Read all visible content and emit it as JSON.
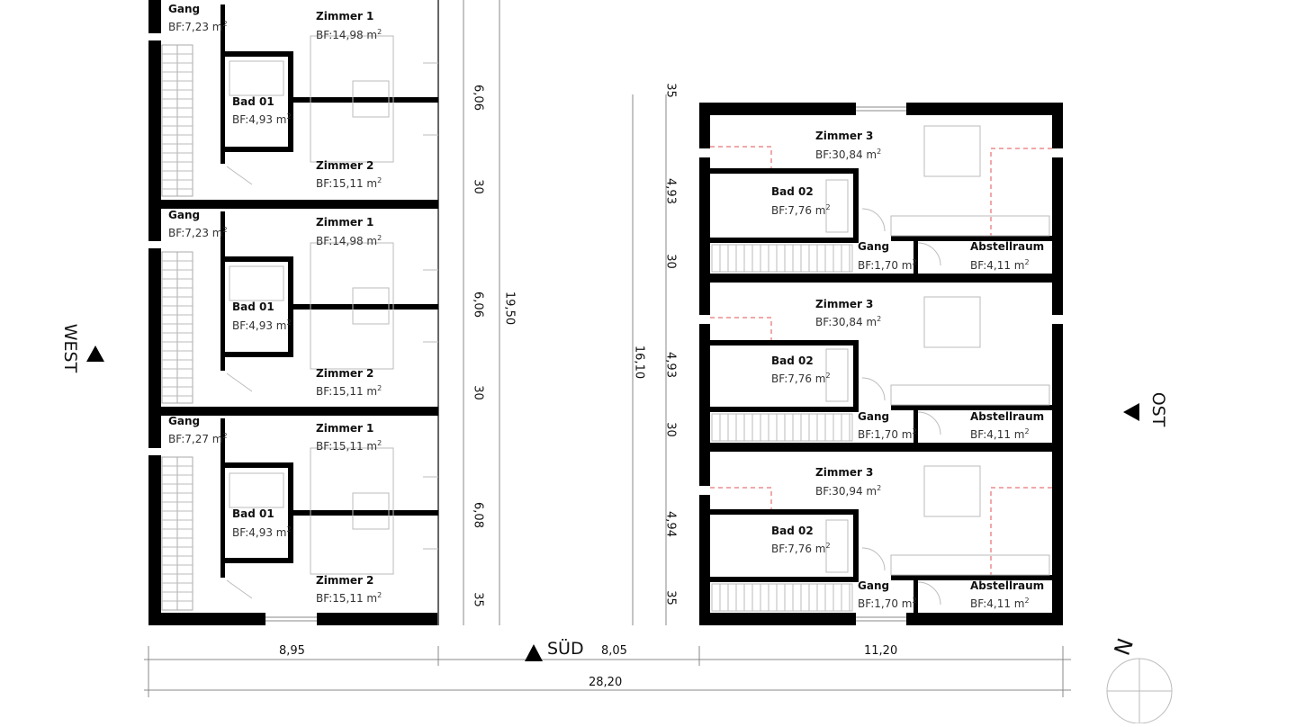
{
  "west_units": [
    {
      "gang_label": "Gang",
      "gang_area": "BF:7,23 m",
      "z1_label": "Zimmer 1",
      "z1_area": "BF:14,98 m",
      "bad_label": "Bad 01",
      "bad_area": "BF:4,93 m",
      "z2_label": "Zimmer 2",
      "z2_area": "BF:15,11 m"
    },
    {
      "gang_label": "Gang",
      "gang_area": "BF:7,23 m",
      "z1_label": "Zimmer 1",
      "z1_area": "BF:14,98 m",
      "bad_label": "Bad 01",
      "bad_area": "BF:4,93 m",
      "z2_label": "Zimmer 2",
      "z2_area": "BF:15,11 m"
    },
    {
      "gang_label": "Gang",
      "gang_area": "BF:7,27 m",
      "z1_label": "Zimmer 1",
      "z1_area": "BF:15,11 m",
      "bad_label": "Bad 01",
      "bad_area": "BF:4,93 m",
      "z2_label": "Zimmer 2",
      "z2_area": "BF:15,11 m"
    }
  ],
  "east_units": [
    {
      "z3_label": "Zimmer 3",
      "z3_area": "BF:30,84 m",
      "bad_label": "Bad 02",
      "bad_area": "BF:7,76 m",
      "gang_label": "Gang",
      "gang_area": "BF:1,70 m",
      "abst_label": "Abstellraum",
      "abst_area": "BF:4,11 m"
    },
    {
      "z3_label": "Zimmer 3",
      "z3_area": "BF:30,84 m",
      "bad_label": "Bad 02",
      "bad_area": "BF:7,76 m",
      "gang_label": "Gang",
      "gang_area": "BF:1,70 m",
      "abst_label": "Abstellraum",
      "abst_area": "BF:4,11 m"
    },
    {
      "z3_label": "Zimmer 3",
      "z3_area": "BF:30,94 m",
      "bad_label": "Bad 02",
      "bad_area": "BF:7,76 m",
      "gang_label": "Gang",
      "gang_area": "BF:1,70 m",
      "abst_label": "Abstellraum",
      "abst_area": "BF:4,11 m"
    }
  ],
  "area_unit_superscript": "2",
  "west_dims": [
    "6,06",
    "30",
    "6,06",
    "30",
    "6,08",
    "35"
  ],
  "west_total": "19,50",
  "east_dims": [
    "35",
    "4,93",
    "30",
    "4,93",
    "30",
    "4,94",
    "35"
  ],
  "east_total": "16,10",
  "bottom_dims": {
    "left": "8,95",
    "middle": "8,05",
    "right": "11,20",
    "total": "28,20"
  },
  "compass": {
    "west": "WEST",
    "east": "OST",
    "south": "SÜD",
    "north": "N"
  },
  "colors": {
    "wall": "#000000",
    "line": "#999999",
    "dashed": "#e05050"
  }
}
